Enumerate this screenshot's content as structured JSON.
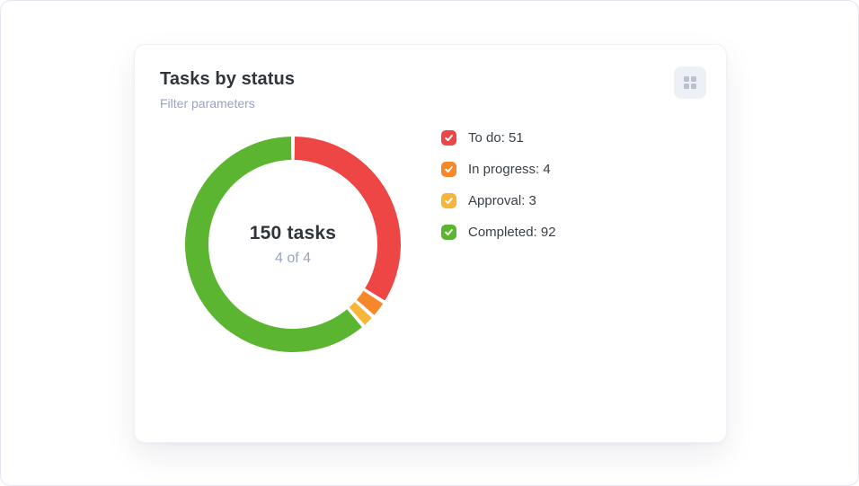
{
  "card": {
    "title": "Tasks by status",
    "subtitle": "Filter parameters"
  },
  "toolbar": {
    "drag_handle_icon": "grid-icon"
  },
  "chart_data": {
    "type": "pie",
    "variant": "donut",
    "title": "Tasks by status",
    "total": 150,
    "center_label": "150 tasks",
    "center_sublabel": "4 of 4",
    "start_angle_deg": 0,
    "direction": "clockwise",
    "pad_angle_deg": 2,
    "legend_position": "right",
    "legend_checkbox_checked": true,
    "checkmark_color": "#ffffff",
    "segments": [
      {
        "label": "To do",
        "value": 51,
        "color": "#ee4545"
      },
      {
        "label": "In progress",
        "value": 4,
        "color": "#f6882b"
      },
      {
        "label": "Approval",
        "value": 3,
        "color": "#f7b53a"
      },
      {
        "label": "Completed",
        "value": 92,
        "color": "#5bb531"
      }
    ]
  },
  "colors": {
    "card_background": "#ffffff",
    "title_text": "#30353c",
    "muted_text": "#99a3c2",
    "legend_text": "#3a4048",
    "button_background": "#edf0f5",
    "button_icon": "#b7c1d0"
  }
}
